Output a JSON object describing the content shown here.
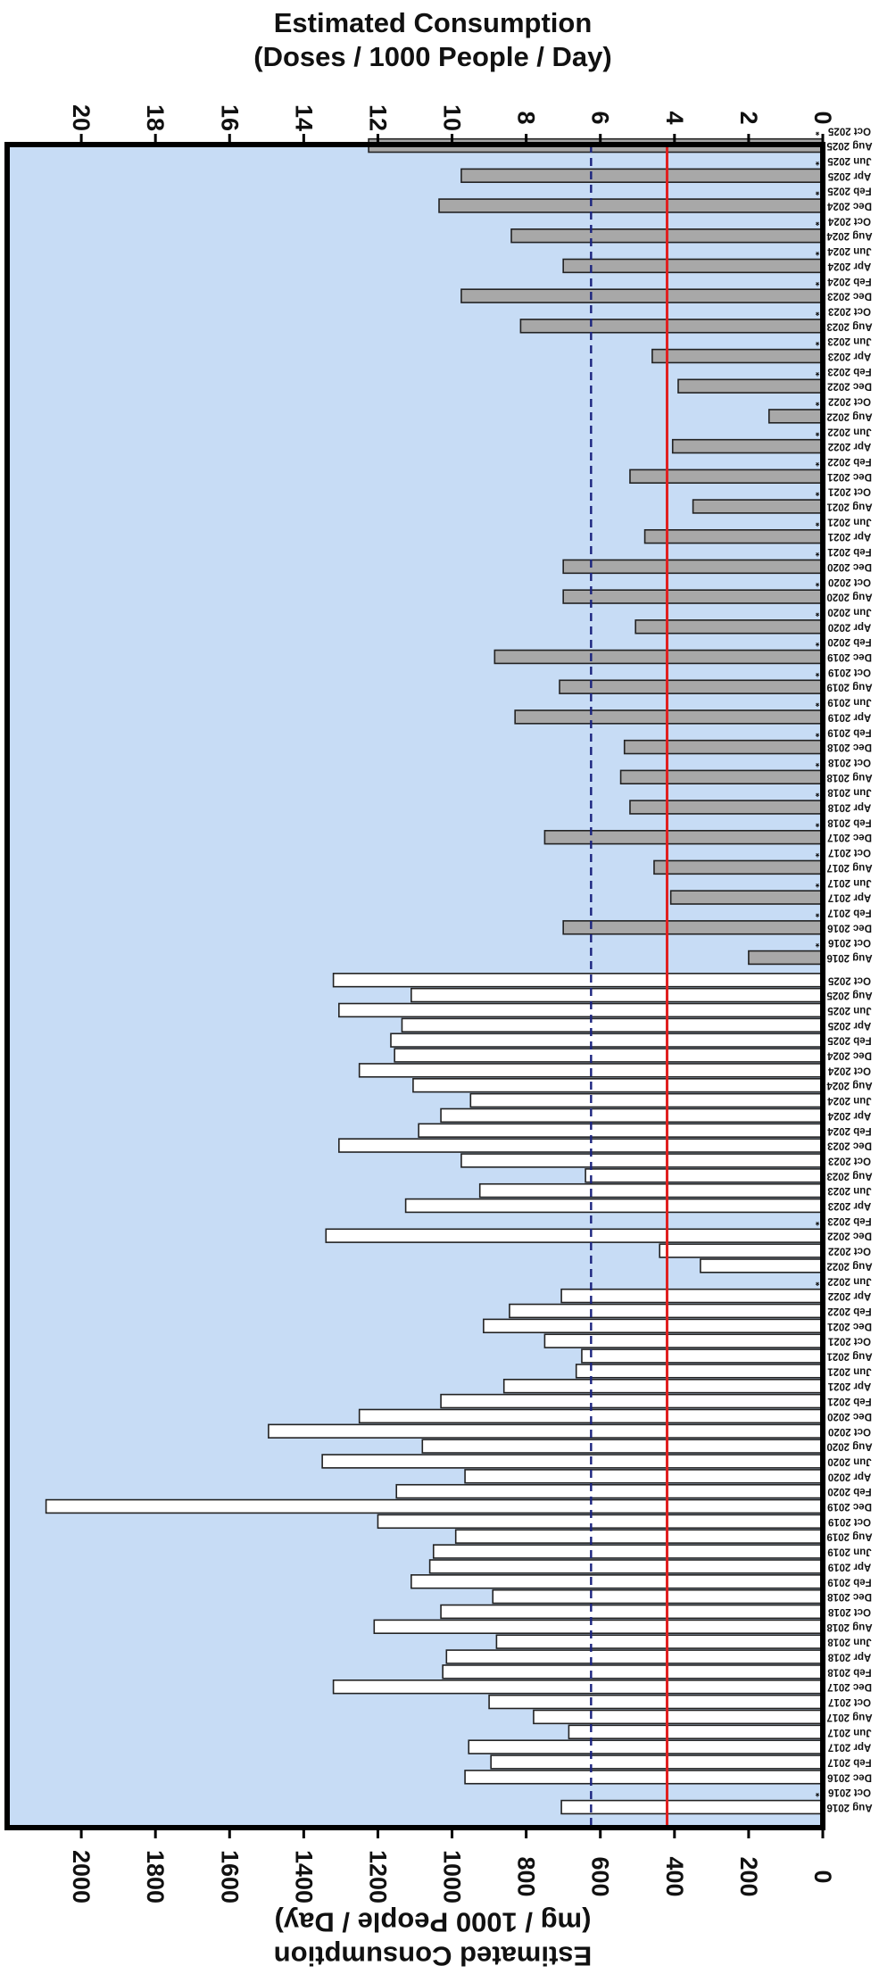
{
  "chart_data": {
    "type": "bar",
    "orientation": "rotated 90 degrees clockwise",
    "colors": {
      "plot_background": "#c7dcf5",
      "top_series_fill": "#a8a8a8",
      "bottom_series_fill": "#ffffff",
      "bar_outline": "#222222",
      "reference_solid": "#e02020",
      "reference_dashed": "#1a237e"
    },
    "top_axis": {
      "title_lines": [
        "Estimated Consumption",
        "(Doses / 1000 People / Day)"
      ],
      "ticks": [
        "0",
        "2",
        "4",
        "6",
        "8",
        "10",
        "12",
        "14",
        "16",
        "18",
        "20"
      ],
      "range": [
        0,
        22
      ]
    },
    "bottom_axis": {
      "title_lines": [
        "Estimated Consumption",
        "(mg / 1000 People / Day)"
      ],
      "ticks": [
        "0",
        "200",
        "400",
        "600",
        "800",
        "1000",
        "1200",
        "1400",
        "1600",
        "1800",
        "2000"
      ],
      "range": [
        0,
        2200
      ]
    },
    "reference_lines": [
      {
        "style": "solid",
        "value_mg": 420
      },
      {
        "style": "dashed",
        "value_mg": 625
      }
    ],
    "missing_marker": "*",
    "top_series": {
      "categories": [
        "Aug 2016",
        "Oct 2016",
        "Dec 2016",
        "Feb 2017",
        "Apr 2017",
        "Jun 2017",
        "Aug 2017",
        "Oct 2017",
        "Dec 2017",
        "Feb 2018",
        "Apr 2018",
        "Jun 2018",
        "Aug 2018",
        "Oct 2018",
        "Dec 2018",
        "Feb 2019",
        "Apr 2019",
        "Jun 2019",
        "Aug 2019",
        "Oct 2019",
        "Dec 2019",
        "Feb 2020",
        "Apr 2020",
        "Jun 2020",
        "Aug 2020",
        "Oct 2020",
        "Dec 2020",
        "Feb 2021",
        "Apr 2021",
        "Jun 2021",
        "Aug 2021",
        "Oct 2021",
        "Dec 2021",
        "Feb 2022",
        "Apr 2022",
        "Jun 2022",
        "Aug 2022",
        "Oct 2022",
        "Dec 2022",
        "Feb 2023",
        "Apr 2023",
        "Jun 2023",
        "Aug 2023",
        "Oct 2023",
        "Dec 2023",
        "Feb 2024",
        "Apr 2024",
        "Jun 2024",
        "Aug 2024",
        "Oct 2024",
        "Dec 2024",
        "Feb 2025",
        "Apr 2025",
        "Jun 2025",
        "Aug 2025",
        "Oct 2025"
      ],
      "values": [
        2.0,
        null,
        7.0,
        null,
        4.1,
        null,
        4.55,
        null,
        7.5,
        null,
        5.2,
        null,
        5.45,
        null,
        5.35,
        null,
        8.3,
        null,
        7.1,
        null,
        8.85,
        null,
        5.05,
        null,
        7.0,
        null,
        7.0,
        null,
        4.8,
        null,
        3.5,
        null,
        5.2,
        null,
        4.05,
        null,
        1.45,
        null,
        3.9,
        null,
        4.6,
        null,
        8.15,
        null,
        9.75,
        null,
        7.0,
        null,
        8.4,
        null,
        10.35,
        null,
        9.75,
        null,
        12.25,
        null
      ]
    },
    "bottom_series": {
      "categories": [
        "Aug 2016",
        "Oct 2016",
        "Dec 2016",
        "Feb 2017",
        "Apr 2017",
        "Jun 2017",
        "Aug 2017",
        "Oct 2017",
        "Dec 2017",
        "Feb 2018",
        "Apr 2018",
        "Jun 2018",
        "Aug 2018",
        "Oct 2018",
        "Dec 2018",
        "Feb 2019",
        "Apr 2019",
        "Jun 2019",
        "Aug 2019",
        "Oct 2019",
        "Dec 2019",
        "Feb 2020",
        "Apr 2020",
        "Jun 2020",
        "Aug 2020",
        "Oct 2020",
        "Dec 2020",
        "Feb 2021",
        "Apr 2021",
        "Jun 2021",
        "Aug 2021",
        "Oct 2021",
        "Dec 2021",
        "Feb 2022",
        "Apr 2022",
        "Jun 2022",
        "Aug 2022",
        "Oct 2022",
        "Dec 2022",
        "Feb 2023",
        "Apr 2023",
        "Jun 2023",
        "Aug 2023",
        "Oct 2023",
        "Dec 2023",
        "Feb 2024",
        "Apr 2024",
        "Jun 2024",
        "Aug 2024",
        "Oct 2024",
        "Dec 2024",
        "Feb 2025",
        "Apr 2025",
        "Jun 2025",
        "Aug 2025",
        "Oct 2025"
      ],
      "values": [
        705,
        null,
        965,
        895,
        955,
        685,
        780,
        900,
        1320,
        1025,
        1015,
        880,
        1210,
        1030,
        890,
        1110,
        1060,
        1050,
        990,
        1200,
        2095,
        1150,
        965,
        1350,
        1080,
        1495,
        1250,
        1030,
        860,
        665,
        650,
        750,
        915,
        845,
        705,
        null,
        330,
        440,
        1340,
        null,
        1125,
        925,
        640,
        975,
        1305,
        1090,
        1030,
        950,
        1105,
        1250,
        1155,
        1165,
        1135,
        1305,
        1110,
        1320
      ]
    }
  }
}
